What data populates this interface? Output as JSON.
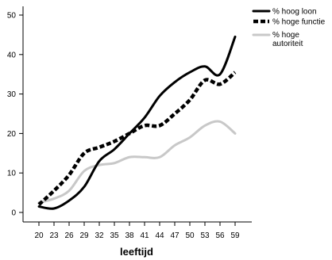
{
  "chart_data": {
    "type": "line",
    "title": "",
    "xlabel": "leeftijd",
    "ylabel": "",
    "categories": [
      "20",
      "23",
      "26",
      "29",
      "32",
      "35",
      "38",
      "41",
      "44",
      "47",
      "50",
      "53",
      "56",
      "59"
    ],
    "ylim": [
      0,
      50
    ],
    "yticks": [
      0,
      10,
      20,
      30,
      40,
      50
    ],
    "legend_position": "top-right",
    "grid": false,
    "series": [
      {
        "name": "% hoog loon",
        "color": "#000000",
        "dash": "solid",
        "values": [
          1.5,
          1.0,
          3.0,
          6.5,
          13.0,
          16.0,
          20.0,
          24.0,
          29.5,
          33.0,
          35.5,
          37.0,
          35.0,
          44.5
        ]
      },
      {
        "name": "% hoge functie",
        "color": "#000000",
        "dash": "dashed",
        "values": [
          2.0,
          5.5,
          9.5,
          15.0,
          16.5,
          18.0,
          20.0,
          22.0,
          22.0,
          25.0,
          28.5,
          33.5,
          32.5,
          35.5
        ]
      },
      {
        "name": "% hoge autoriteit",
        "name_lines": [
          "% hoge",
          "autoriteit"
        ],
        "color": "#c8c8c8",
        "dash": "solid",
        "values": [
          2.5,
          3.5,
          5.5,
          10.5,
          12.0,
          12.5,
          14.0,
          14.0,
          14.0,
          17.0,
          19.0,
          22.0,
          23.0,
          20.0
        ]
      }
    ]
  }
}
